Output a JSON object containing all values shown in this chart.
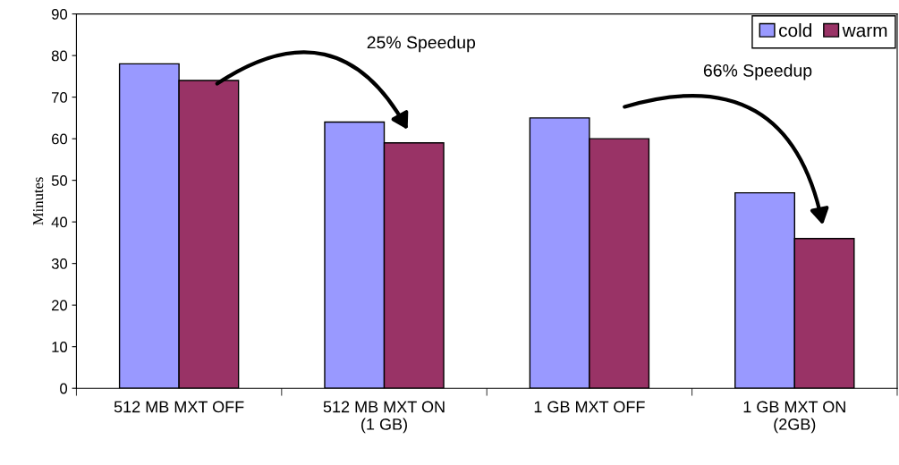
{
  "chart_data": {
    "type": "bar",
    "ylabel": "Minutes",
    "categories": [
      "512 MB MXT OFF",
      "512 MB MXT ON\n(1 GB)",
      "1 GB MXT OFF",
      "1 GB MXT ON\n(2GB)"
    ],
    "series": [
      {
        "name": "cold",
        "color": "#9999ff",
        "values": [
          78,
          64,
          65,
          47
        ]
      },
      {
        "name": "warm",
        "color": "#993366",
        "values": [
          74,
          59,
          60,
          36
        ]
      }
    ],
    "ylim": [
      0,
      90
    ],
    "yticks": [
      0,
      10,
      20,
      30,
      40,
      50,
      60,
      70,
      80,
      90
    ],
    "grid": false,
    "legend": "top right",
    "annotations": [
      "25% Speedup",
      "66% Speedup"
    ]
  }
}
